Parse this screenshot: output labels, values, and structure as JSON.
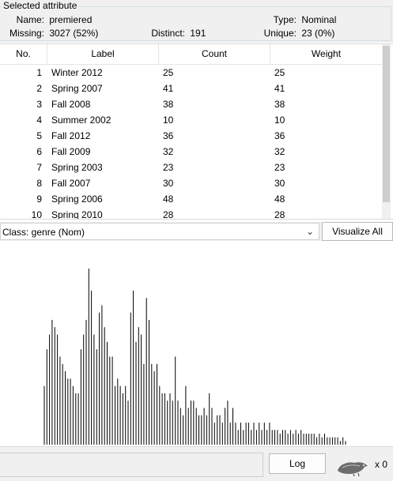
{
  "selected_attribute": {
    "title": "Selected attribute",
    "name_label": "Name:",
    "name_value": "premiered",
    "type_label": "Type:",
    "type_value": "Nominal",
    "missing_label": "Missing:",
    "missing_value": "3027 (52%)",
    "distinct_label": "Distinct:",
    "distinct_value": "191",
    "unique_label": "Unique:",
    "unique_value": "23 (0%)"
  },
  "table": {
    "headers": [
      "No.",
      "Label",
      "Count",
      "Weight"
    ],
    "rows": [
      {
        "no": "1",
        "label": "Winter 2012",
        "count": "25",
        "weight": "25"
      },
      {
        "no": "2",
        "label": "Spring 2007",
        "count": "41",
        "weight": "41"
      },
      {
        "no": "3",
        "label": "Fall 2008",
        "count": "38",
        "weight": "38"
      },
      {
        "no": "4",
        "label": "Summer 2002",
        "count": "10",
        "weight": "10"
      },
      {
        "no": "5",
        "label": "Fall 2012",
        "count": "36",
        "weight": "36"
      },
      {
        "no": "6",
        "label": "Fall 2009",
        "count": "32",
        "weight": "32"
      },
      {
        "no": "7",
        "label": "Spring 2003",
        "count": "23",
        "weight": "23"
      },
      {
        "no": "8",
        "label": "Fall 2007",
        "count": "30",
        "weight": "30"
      },
      {
        "no": "9",
        "label": "Spring 2006",
        "count": "48",
        "weight": "48"
      },
      {
        "no": "10",
        "label": "Spring 2010",
        "count": "28",
        "weight": "28"
      }
    ]
  },
  "class_selector": {
    "value": "Class: genre (Nom)"
  },
  "visualize_all_label": "Visualize All",
  "log_label": "Log",
  "task_count": "x 0",
  "chart_data": {
    "type": "bar",
    "title": "",
    "xlabel": "",
    "ylabel": "",
    "ylim": [
      0,
      48
    ],
    "values": [
      16,
      26,
      30,
      34,
      32,
      30,
      24,
      22,
      20,
      18,
      18,
      16,
      14,
      14,
      26,
      30,
      34,
      48,
      42,
      30,
      26,
      36,
      38,
      32,
      28,
      24,
      24,
      16,
      18,
      16,
      14,
      16,
      12,
      36,
      42,
      28,
      32,
      30,
      22,
      40,
      34,
      22,
      20,
      22,
      16,
      14,
      14,
      12,
      14,
      12,
      24,
      12,
      10,
      8,
      16,
      10,
      12,
      12,
      10,
      8,
      8,
      10,
      8,
      14,
      10,
      6,
      8,
      8,
      6,
      10,
      12,
      6,
      10,
      6,
      4,
      6,
      4,
      6,
      6,
      4,
      6,
      4,
      6,
      4,
      6,
      4,
      6,
      4,
      4,
      4,
      3,
      4,
      4,
      3,
      4,
      3,
      4,
      3,
      4,
      3,
      3,
      3,
      3,
      3,
      2,
      3,
      2,
      3,
      2,
      2,
      2,
      2,
      2,
      1,
      2,
      1
    ],
    "colors": {
      "bar": "#000000"
    }
  }
}
